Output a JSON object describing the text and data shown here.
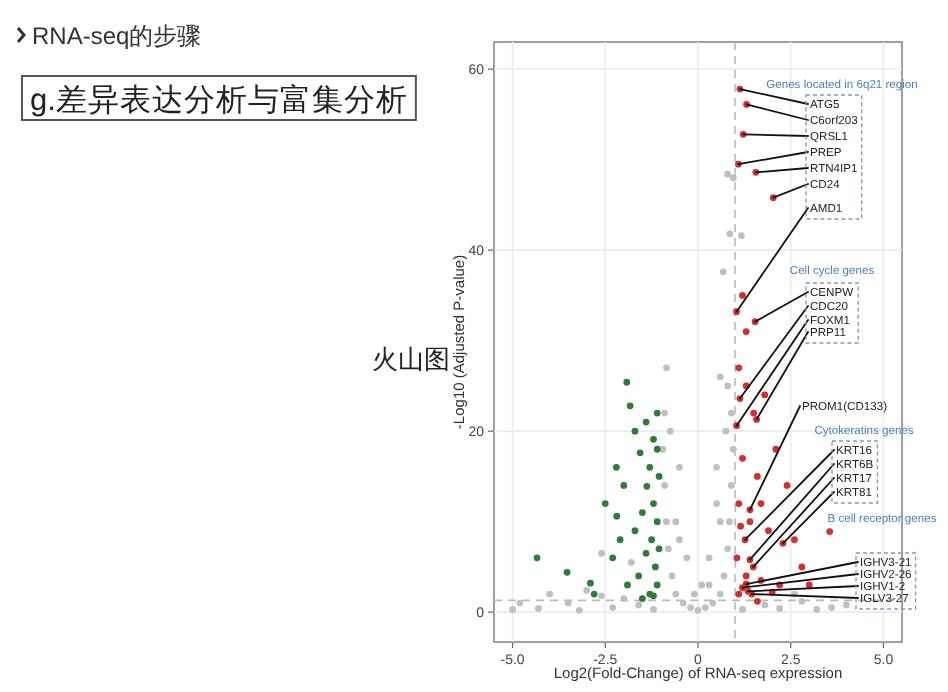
{
  "chart_data": {
    "type": "scatter",
    "title": "RNA-seq的步骤",
    "subtitle": "g.差异表达分析与富集分析",
    "xlabel": "Log2(Fold-Change) of RNA-seq expression",
    "ylabel": "-Log10 (Adjusted P-value)",
    "xlim": [
      -5.5,
      5.5
    ],
    "ylim": [
      -3.3,
      63
    ],
    "xticks": [
      {
        "value": -5,
        "label": "-5.0"
      },
      {
        "value": -2.5,
        "label": "-2.5"
      },
      0,
      {
        "value": 2.5,
        "label": "2.5"
      },
      {
        "value": 5,
        "label": "5.0"
      }
    ],
    "yticks": [
      0,
      20,
      40,
      60
    ],
    "grid": true,
    "marker": "circle",
    "ref_lines": [
      {
        "axis": "x",
        "value": 1,
        "color": "#bbbbbb",
        "line_style": "dashed"
      },
      {
        "axis": "y",
        "value": 1.3,
        "color": "#bbbbbb",
        "line_style": "dashed"
      }
    ],
    "series": [
      {
        "color": "#c0c0c0",
        "x": [
          0,
          0.2,
          -0.2,
          0.4,
          -0.4,
          0.6,
          -0.6,
          0.7,
          -0.7,
          0.8,
          -0.8,
          0.85,
          -0.85,
          0.9,
          -0.9,
          0.95,
          -0.95,
          0.9,
          -0.9,
          0.8,
          -0.85,
          0.6,
          -0.5,
          0.5,
          -0.3,
          0.3,
          -0.6,
          0.6,
          -0.75,
          0.75,
          0.3,
          -0.1,
          0.1,
          -0.5,
          0.5,
          -5,
          -4.8,
          -4.3,
          -4,
          -3.5,
          -3.2,
          -2.6,
          -2.3,
          -2,
          -1.6,
          -1.8,
          -2.6,
          -3,
          -1.2,
          1.2,
          1.8,
          2.2,
          2.8,
          3.2,
          3.6,
          2.6,
          4,
          0.86,
          1.17,
          0.68,
          0.95,
          0.8
        ],
        "values": [
          0.2,
          0.5,
          0.5,
          1,
          1,
          2,
          2,
          4,
          4,
          7,
          7,
          10,
          10,
          14,
          14,
          18,
          18,
          22,
          22,
          25,
          27,
          26,
          16,
          16,
          6,
          6,
          10,
          10,
          20,
          20,
          3,
          2,
          3,
          8,
          12,
          0.3,
          1,
          0.4,
          2,
          1,
          0.2,
          1.8,
          0.5,
          1.5,
          0.8,
          5.5,
          6.5,
          2.4,
          0.3,
          0.3,
          0.8,
          0.4,
          1.2,
          0.3,
          0.5,
          2,
          0.8,
          41.8,
          41.6,
          37.6,
          48,
          48.4
        ]
      },
      {
        "color": "#2e7d32",
        "x": [
          -1.92,
          -1.83,
          -1.2,
          -1.56,
          -1.38,
          -2.19,
          -4.34,
          -2.9,
          -3.53,
          -1.1,
          -1.3,
          -1.05,
          -1.2,
          -1.5,
          -1.1,
          -1.7,
          -1.25,
          -1.05,
          -1.4,
          -2.1,
          -2.3,
          -1.15,
          -1.6,
          -1.9,
          -1.1,
          -1.3,
          -2,
          -1.7,
          -1.1,
          -1.4,
          -2.5,
          -2.2,
          -2.8,
          -1.2,
          -1.5
        ],
        "values": [
          25.4,
          22.8,
          19.1,
          17.6,
          13.9,
          10.6,
          6,
          3.2,
          4.4,
          18,
          16,
          15,
          12,
          11,
          10,
          9,
          8,
          7,
          6.5,
          8,
          6,
          5,
          4,
          3,
          3,
          2,
          14,
          20,
          22,
          21,
          12,
          16,
          2,
          1.8,
          1.5
        ]
      },
      {
        "color": "#d32f2f",
        "x": [
          1.13,
          1.31,
          1.22,
          1.09,
          1.56,
          2.03,
          1.04,
          1.54,
          1.13,
          1.04,
          1.58,
          1.4,
          1.27,
          1.4,
          1.49,
          2.29,
          1.3,
          1.2,
          1.35,
          1.45,
          1.1,
          1.3,
          1.5,
          1.8,
          2.1,
          1.2,
          1.6,
          2.4,
          1.1,
          1.4,
          1.9,
          2.6,
          1.05,
          1.3,
          1.7,
          2.2,
          1.1,
          1.6,
          2,
          2.8,
          3.55,
          1.15,
          1.7,
          3,
          1.3,
          1.2
        ],
        "values": [
          57.8,
          56.1,
          52.8,
          49.5,
          48.6,
          45.8,
          33.2,
          32.1,
          23.6,
          20.6,
          21.3,
          11.3,
          8,
          5.8,
          5,
          7.6,
          3.1,
          2.7,
          2.3,
          2,
          27,
          25,
          22,
          24,
          18,
          17,
          15,
          14,
          12,
          10,
          9,
          8,
          6,
          4,
          3.5,
          3,
          2,
          1.2,
          2.2,
          5,
          8.9,
          9.5,
          12,
          3,
          31,
          35
        ]
      }
    ],
    "annotations": [
      "火山图",
      "Genes located in 6q21 region",
      "Cell cycle genes",
      "Cytokeratins genes",
      "B cell receptor genes",
      {
        "text": "ATG5",
        "x": 1.13,
        "y": 57.8
      },
      {
        "text": "C6orf203",
        "x": 1.31,
        "y": 56.1
      },
      {
        "text": "QRSL1",
        "x": 1.22,
        "y": 52.8
      },
      {
        "text": "PREP",
        "x": 1.09,
        "y": 49.5
      },
      {
        "text": "RTN4IP1",
        "x": 1.56,
        "y": 48.6
      },
      {
        "text": "CD24",
        "x": 2.03,
        "y": 45.8
      },
      {
        "text": "AMD1",
        "x": 1.04,
        "y": 33.2
      },
      {
        "text": "CENPW",
        "x": 1.54,
        "y": 32.1
      },
      {
        "text": "CDC20",
        "x": 1.13,
        "y": 23.6
      },
      {
        "text": "FOXM1",
        "x": 1.04,
        "y": 20.6
      },
      {
        "text": "PRP11",
        "x": 1.58,
        "y": 21.3
      },
      {
        "text": "PROM1(CD133)",
        "x": 1.4,
        "y": 11.3
      },
      {
        "text": "KRT16",
        "x": 1.27,
        "y": 8
      },
      {
        "text": "KRT6B",
        "x": 1.4,
        "y": 5.8
      },
      {
        "text": "KRT17",
        "x": 1.49,
        "y": 5
      },
      {
        "text": "KRT81",
        "x": 2.29,
        "y": 7.6
      },
      {
        "text": "IGHV3-21",
        "x": 1.3,
        "y": 3.1
      },
      {
        "text": "IGHV2-26",
        "x": 1.2,
        "y": 2.7
      },
      {
        "text": "IGHV1-2",
        "x": 1.35,
        "y": 2.3
      },
      {
        "text": "IGLV3-27",
        "x": 1.45,
        "y": 2
      }
    ]
  }
}
